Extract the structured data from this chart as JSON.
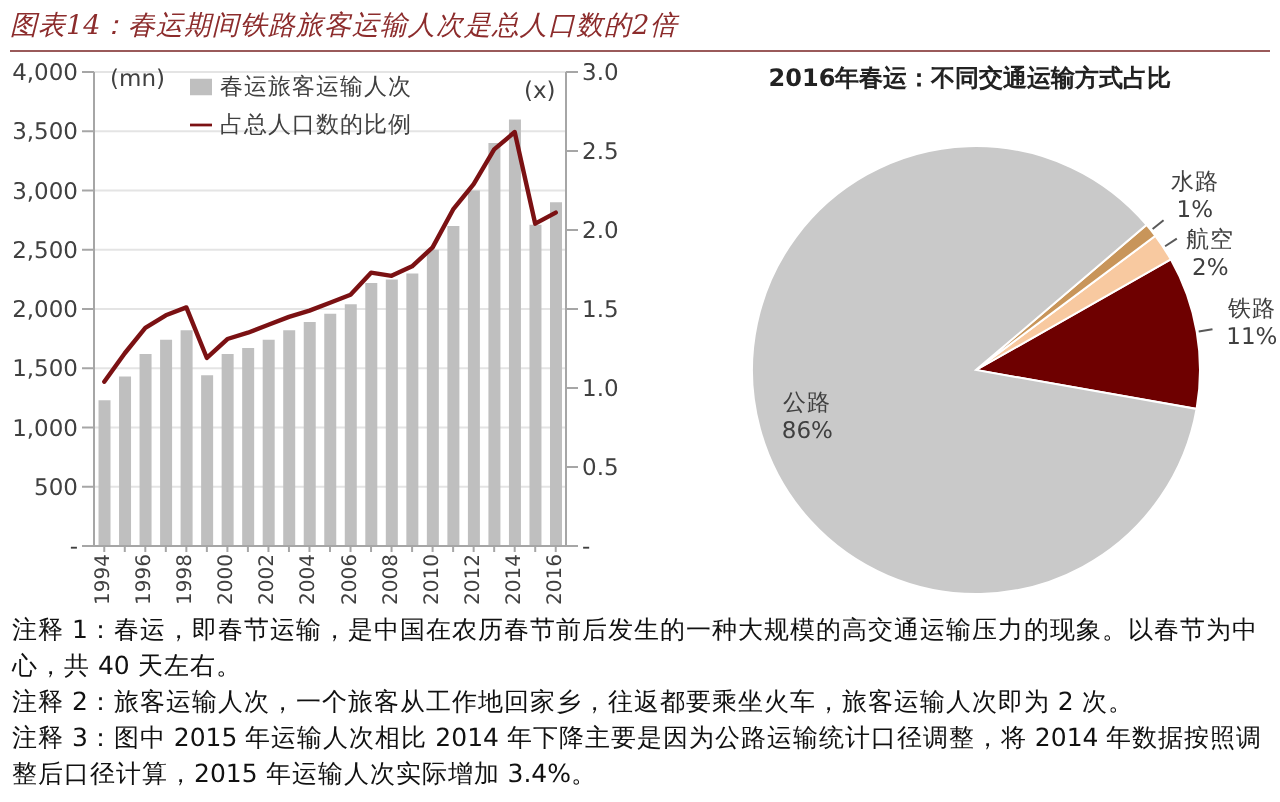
{
  "chart_data": [
    {
      "type": "bar",
      "title": "图表14：春运期间铁路旅客运输人次是总人口数的2倍",
      "ylabel": "(mn)",
      "y2label": "(x)",
      "categories": [
        "1994",
        null,
        "1996",
        null,
        "1998",
        null,
        "2000",
        null,
        "2002",
        null,
        "2004",
        null,
        "2006",
        null,
        "2008",
        null,
        "2010",
        null,
        "2012",
        null,
        "2014",
        null,
        "2016"
      ],
      "series": [
        {
          "name": "春运旅客运输人次",
          "type": "bar",
          "color": "#bfbfbf",
          "values": [
            1230,
            1430,
            1620,
            1740,
            1820,
            1440,
            1620,
            1670,
            1740,
            1820,
            1890,
            1960,
            2040,
            2220,
            2250,
            2300,
            2500,
            2700,
            3000,
            3400,
            3600,
            2710,
            2900
          ]
        },
        {
          "name": "占总人口数的比例",
          "type": "line",
          "axis": "y2",
          "color": "#7b1113",
          "values": [
            1.04,
            1.22,
            1.38,
            1.46,
            1.51,
            1.19,
            1.31,
            1.35,
            1.4,
            1.45,
            1.49,
            1.54,
            1.59,
            1.73,
            1.71,
            1.77,
            1.89,
            2.13,
            2.29,
            2.51,
            2.62,
            2.04,
            2.11
          ]
        }
      ],
      "ylim": [
        0,
        4000
      ],
      "yticks": [
        {
          "value": 0,
          "label": "-"
        },
        500,
        {
          "value": 1000,
          "label": "1,000"
        },
        {
          "value": 1500,
          "label": "1,500"
        },
        {
          "value": 2000,
          "label": "2,000"
        },
        {
          "value": 2500,
          "label": "2,500"
        },
        {
          "value": 3000,
          "label": "3,000"
        },
        {
          "value": 3500,
          "label": "3,500"
        },
        {
          "value": 4000,
          "label": "4,000"
        }
      ],
      "y2lim": [
        0,
        3
      ],
      "y2ticks": [
        {
          "value": 0,
          "label": "-"
        },
        0.5,
        {
          "value": 1,
          "label": "1.0"
        },
        1.5,
        {
          "value": 2,
          "label": "2.0"
        },
        2.5,
        {
          "value": 3,
          "label": "3.0"
        }
      ],
      "grid": "y",
      "legend": "top",
      "annotations": [
        "注释 1：春运，即春节运输，是中国在农历春节前后发生的一种大规模的高交通运输压力的现象。以春节为中心，共 40 天左右。",
        "注释 2：旅客运输人次，一个旅客从工作地回家乡，往返都要乘坐火车，旅客运输人次即为 2 次。",
        "注释 3：图中 2015 年运输人次相比 2014 年下降主要是因为公路运输统计口径调整，将 2014 年数据按照调整后口径计算，2015 年运输人次实际增加 3.4%。"
      ]
    },
    {
      "type": "pie",
      "title": "2016年春运：不同交通运输方式占比",
      "categories": [
        "铁路",
        "航空",
        "水路",
        "公路"
      ],
      "values": [
        11,
        2,
        1,
        86
      ],
      "colors": [
        "#6e0000",
        "#f8c9a0",
        "#c8955a",
        "#c9c9c9"
      ],
      "value_labels": [
        "11%",
        "2%",
        "1%",
        "86%"
      ]
    }
  ]
}
